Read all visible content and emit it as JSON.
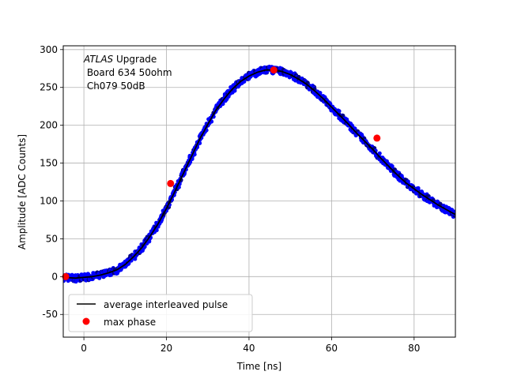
{
  "chart_data": {
    "type": "scatter",
    "title": "",
    "xlabel": "Time [ns]",
    "ylabel": "Amplitude [ADC Counts]",
    "xlim": [
      -5,
      90
    ],
    "ylim": [
      -80,
      305
    ],
    "xticks": [
      0,
      20,
      40,
      60,
      80
    ],
    "yticks": [
      -50,
      0,
      50,
      100,
      150,
      200,
      250,
      300
    ],
    "grid": true,
    "annotation": {
      "line1_italic": "ATLAS",
      "line1_rest": " Upgrade",
      "line2": " Board 634 50ohm",
      "line3": " Ch079 50dB"
    },
    "legend": {
      "placement": "lower-left",
      "entries": [
        "average interleaved pulse",
        "max phase"
      ]
    },
    "series": [
      {
        "name": "average interleaved pulse",
        "kind": "line",
        "color": "#000000",
        "x": [
          -5,
          -2,
          0,
          2,
          4,
          6,
          8,
          10,
          12,
          14,
          16,
          18,
          20,
          22,
          24,
          26,
          28,
          30,
          32,
          34,
          36,
          38,
          40,
          42,
          44,
          46,
          48,
          50,
          52,
          54,
          56,
          58,
          60,
          62,
          64,
          66,
          68,
          70,
          72,
          74,
          76,
          78,
          80,
          82,
          84,
          86,
          88,
          90
        ],
        "y": [
          -1,
          -2,
          -1,
          0,
          2,
          5,
          9,
          16,
          26,
          38,
          53,
          70,
          90,
          112,
          135,
          158,
          181,
          201,
          220,
          235,
          248,
          258,
          265,
          270,
          273,
          273,
          271,
          267,
          261,
          254,
          245,
          235,
          224,
          213,
          202,
          190,
          179,
          168,
          156,
          145,
          134,
          124,
          116,
          108,
          101,
          94,
          88,
          82
        ]
      },
      {
        "name": "max phase",
        "kind": "scatter",
        "color": "#ff0000",
        "x": [
          -4.5,
          21,
          46,
          71
        ],
        "y": [
          0,
          123,
          273,
          183
        ]
      }
    ],
    "samples": {
      "color": "#0000ff",
      "dark_color": "#000080"
    }
  }
}
